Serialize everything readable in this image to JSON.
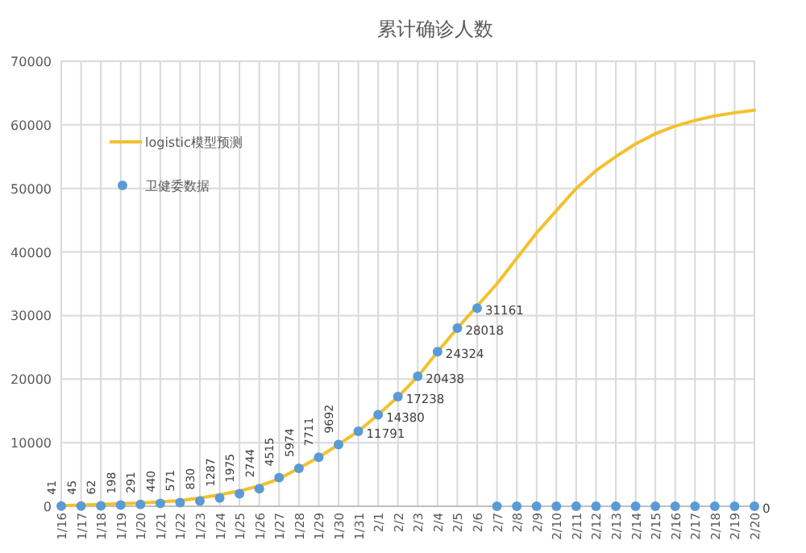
{
  "chart_data": {
    "type": "line",
    "title": "累计确诊人数",
    "categories": [
      "1/16",
      "1/17",
      "1/18",
      "1/19",
      "1/20",
      "1/21",
      "1/22",
      "1/23",
      "1/24",
      "1/25",
      "1/26",
      "1/27",
      "1/28",
      "1/29",
      "1/30",
      "1/31",
      "2/1",
      "2/2",
      "2/3",
      "2/4",
      "2/5",
      "2/6",
      "2/7",
      "2/8",
      "2/9",
      "2/10",
      "2/11",
      "2/12",
      "2/13",
      "2/14",
      "2/15",
      "2/16",
      "2/17",
      "2/18",
      "2/19",
      "2/20"
    ],
    "series": [
      {
        "name": "logistic模型预测",
        "type": "line",
        "color": "#f2c12e",
        "marker": "none",
        "values": [
          100,
          200,
          300,
          400,
          500,
          700,
          900,
          1300,
          1800,
          2400,
          3200,
          4300,
          6000,
          7700,
          9700,
          11800,
          14400,
          17200,
          20400,
          24300,
          28000,
          31500,
          35000,
          39000,
          43000,
          46500,
          50000,
          52800,
          55000,
          57000,
          58600,
          59800,
          60700,
          61400,
          61900,
          62300
        ]
      },
      {
        "name": "卫健委数据",
        "type": "scatter",
        "color": "#5b9bd5",
        "marker": "circle",
        "values": [
          41,
          45,
          62,
          198,
          291,
          440,
          571,
          830,
          1287,
          1975,
          2744,
          4515,
          5974,
          7711,
          9692,
          11791,
          14380,
          17238,
          20438,
          24324,
          28018,
          31161,
          0,
          0,
          0,
          0,
          0,
          0,
          0,
          0,
          0,
          0,
          0,
          0,
          0,
          0
        ],
        "value_labels": [
          "41",
          "45",
          "62",
          "198",
          "291",
          "440",
          "571",
          "830",
          "1287",
          "1975",
          "2744",
          "4515",
          "5974",
          "7711",
          "9692",
          "11791",
          "14380",
          "17238",
          "20438",
          "24324",
          "28018",
          "31161",
          null,
          null,
          null,
          null,
          null,
          null,
          null,
          null,
          null,
          null,
          null,
          null,
          null,
          "0"
        ]
      }
    ],
    "ylim": [
      0,
      70000
    ],
    "yticks": [
      0,
      10000,
      20000,
      30000,
      40000,
      50000,
      60000,
      70000
    ],
    "grid": true,
    "legend": "top left"
  }
}
